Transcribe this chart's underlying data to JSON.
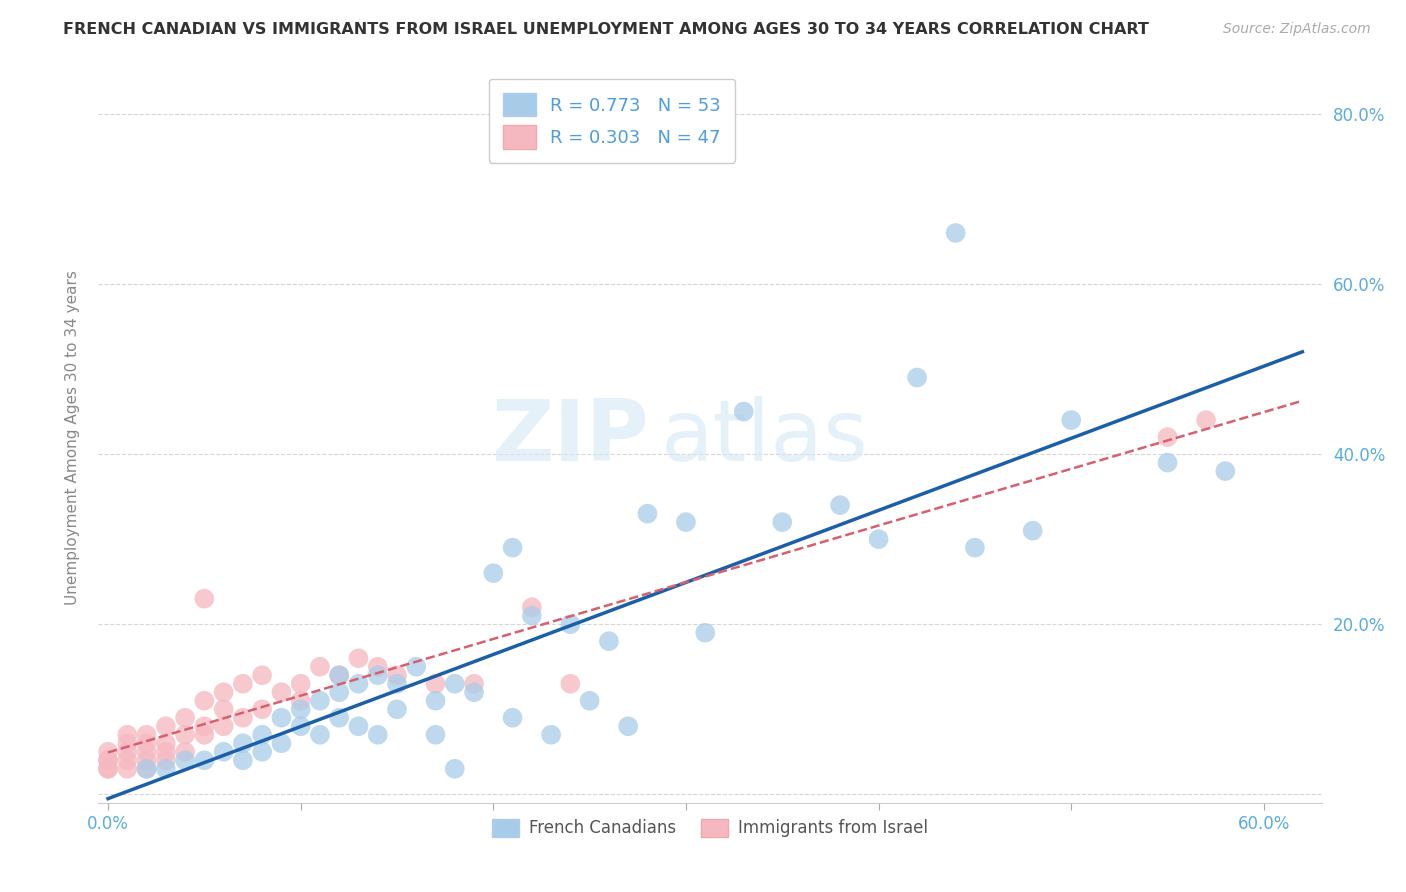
{
  "title": "FRENCH CANADIAN VS IMMIGRANTS FROM ISRAEL UNEMPLOYMENT AMONG AGES 30 TO 34 YEARS CORRELATION CHART",
  "source": "Source: ZipAtlas.com",
  "ylabel": "Unemployment Among Ages 30 to 34 years",
  "ytick_values": [
    0.0,
    0.2,
    0.4,
    0.6,
    0.8
  ],
  "xtick_values": [
    0.0,
    0.1,
    0.2,
    0.3,
    0.4,
    0.5,
    0.6
  ],
  "xlim": [
    -0.005,
    0.63
  ],
  "ylim": [
    -0.01,
    0.85
  ],
  "legend1_label": "R = 0.773   N = 53",
  "legend2_label": "R = 0.303   N = 47",
  "legend_label1": "French Canadians",
  "legend_label2": "Immigrants from Israel",
  "blue_color": "#a8cce8",
  "pink_color": "#f5b8c0",
  "line_blue": "#1a5fa8",
  "line_pink": "#d95f6e",
  "watermark_zip": "ZIP",
  "watermark_atlas": "atlas",
  "blue_scatter_x": [
    0.02,
    0.03,
    0.04,
    0.05,
    0.06,
    0.07,
    0.07,
    0.08,
    0.08,
    0.09,
    0.09,
    0.1,
    0.1,
    0.11,
    0.11,
    0.12,
    0.12,
    0.12,
    0.13,
    0.13,
    0.14,
    0.14,
    0.15,
    0.15,
    0.16,
    0.17,
    0.17,
    0.18,
    0.18,
    0.19,
    0.2,
    0.21,
    0.21,
    0.22,
    0.23,
    0.24,
    0.25,
    0.26,
    0.27,
    0.28,
    0.3,
    0.31,
    0.33,
    0.35,
    0.38,
    0.4,
    0.42,
    0.44,
    0.45,
    0.48,
    0.5,
    0.55,
    0.58
  ],
  "blue_scatter_y": [
    0.03,
    0.03,
    0.04,
    0.04,
    0.05,
    0.06,
    0.04,
    0.07,
    0.05,
    0.09,
    0.06,
    0.1,
    0.08,
    0.11,
    0.07,
    0.12,
    0.09,
    0.14,
    0.13,
    0.08,
    0.14,
    0.07,
    0.13,
    0.1,
    0.15,
    0.11,
    0.07,
    0.13,
    0.03,
    0.12,
    0.26,
    0.09,
    0.29,
    0.21,
    0.07,
    0.2,
    0.11,
    0.18,
    0.08,
    0.33,
    0.32,
    0.19,
    0.45,
    0.32,
    0.34,
    0.3,
    0.49,
    0.66,
    0.29,
    0.31,
    0.44,
    0.39,
    0.38
  ],
  "pink_scatter_x": [
    0.0,
    0.0,
    0.0,
    0.0,
    0.0,
    0.01,
    0.01,
    0.01,
    0.01,
    0.01,
    0.02,
    0.02,
    0.02,
    0.02,
    0.02,
    0.03,
    0.03,
    0.03,
    0.03,
    0.04,
    0.04,
    0.04,
    0.05,
    0.05,
    0.05,
    0.06,
    0.06,
    0.06,
    0.07,
    0.07,
    0.08,
    0.08,
    0.09,
    0.1,
    0.1,
    0.11,
    0.12,
    0.13,
    0.14,
    0.15,
    0.17,
    0.19,
    0.05,
    0.22,
    0.24,
    0.55,
    0.57
  ],
  "pink_scatter_y": [
    0.03,
    0.04,
    0.03,
    0.05,
    0.04,
    0.03,
    0.04,
    0.05,
    0.06,
    0.07,
    0.03,
    0.04,
    0.06,
    0.07,
    0.05,
    0.04,
    0.06,
    0.08,
    0.05,
    0.05,
    0.07,
    0.09,
    0.07,
    0.08,
    0.11,
    0.08,
    0.1,
    0.12,
    0.09,
    0.13,
    0.1,
    0.14,
    0.12,
    0.13,
    0.11,
    0.15,
    0.14,
    0.16,
    0.15,
    0.14,
    0.13,
    0.13,
    0.23,
    0.22,
    0.13,
    0.42,
    0.44
  ]
}
